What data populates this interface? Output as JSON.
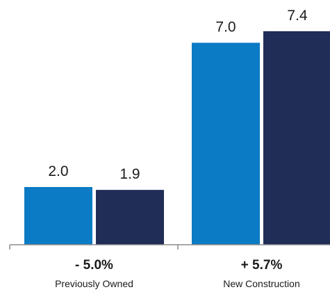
{
  "chart_data": {
    "type": "bar",
    "categories": [
      "Previously Owned",
      "New Construction"
    ],
    "series": [
      {
        "values": [
          2.0,
          7.0
        ],
        "color": "#0a7bc4"
      },
      {
        "values": [
          1.9,
          7.4
        ],
        "color": "#1f2d57"
      }
    ],
    "value_labels": [
      [
        "2.0",
        "1.9"
      ],
      [
        "7.0",
        "7.4"
      ]
    ],
    "changes": [
      "- 5.0%",
      "+ 5.7%"
    ],
    "ylim": [
      0,
      8
    ],
    "grid": false,
    "axis_color": "#8c8c8c"
  }
}
